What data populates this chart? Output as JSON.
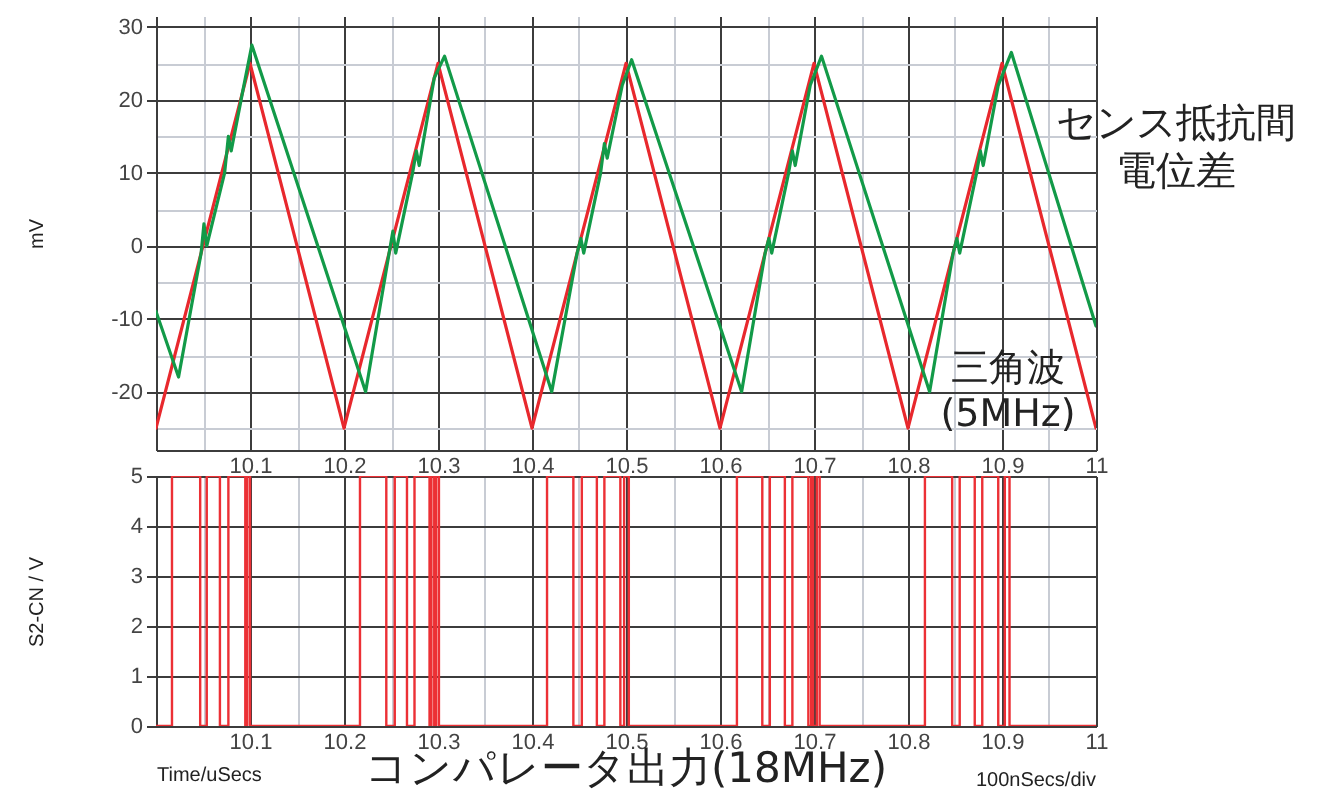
{
  "chart_data": [
    {
      "type": "line",
      "ylabel": "mV",
      "xlim": [
        10,
        11
      ],
      "xticks": [
        {
          "value": 10.05,
          "label": null
        },
        10.1,
        {
          "value": 10.15,
          "label": null
        },
        10.2,
        {
          "value": 10.25,
          "label": null
        },
        10.3,
        {
          "value": 10.35,
          "label": null
        },
        10.4,
        {
          "value": 10.45,
          "label": null
        },
        10.5,
        {
          "value": 10.55,
          "label": null
        },
        10.6,
        {
          "value": 10.65,
          "label": null
        },
        10.7,
        {
          "value": 10.75,
          "label": null
        },
        10.8,
        {
          "value": 10.85,
          "label": null
        },
        10.9,
        {
          "value": 10.95,
          "label": null
        },
        11
      ],
      "ylim": [
        -28,
        31.5
      ],
      "yticks": [
        {
          "value": -25,
          "label": null
        },
        -20,
        {
          "value": -15,
          "label": null
        },
        -10,
        {
          "value": -5,
          "label": null
        },
        0,
        {
          "value": 5,
          "label": null
        },
        10,
        {
          "value": 15,
          "label": null
        },
        20,
        {
          "value": 25,
          "label": null
        },
        30
      ],
      "grid": true,
      "series": [
        {
          "name": "三角波(5MHz)",
          "color": "#e8282d",
          "x": [
            10.0,
            10.1,
            10.2,
            10.3,
            10.4,
            10.5,
            10.6,
            10.7,
            10.8,
            10.9,
            11.0
          ],
          "values": [
            -25,
            25,
            -25,
            25,
            -25,
            25,
            -25,
            25,
            -25,
            25,
            -25
          ]
        },
        {
          "name": "センス抵抗間電位差",
          "color": "#129a48",
          "x": [
            10.0,
            10.024,
            10.048,
            10.051,
            10.054,
            10.073,
            10.077,
            10.08,
            10.092,
            10.102,
            10.223,
            10.248,
            10.252,
            10.255,
            10.273,
            10.277,
            10.28,
            10.296,
            10.307,
            10.421,
            10.448,
            10.452,
            10.455,
            10.473,
            10.477,
            10.48,
            10.496,
            10.506,
            10.623,
            10.648,
            10.652,
            10.655,
            10.673,
            10.677,
            10.68,
            10.696,
            10.708,
            10.823,
            10.848,
            10.852,
            10.855,
            10.873,
            10.877,
            10.88,
            10.896,
            10.91,
            11.0
          ],
          "values": [
            -9,
            -18,
            -1,
            3,
            0,
            10,
            15,
            13,
            21,
            27.5,
            -20,
            -1,
            2,
            -1,
            10,
            13,
            11,
            23,
            26,
            -20,
            -1,
            1,
            -1,
            10,
            14,
            12,
            22,
            25.5,
            -20,
            -1,
            1,
            -1,
            10,
            13,
            11,
            22,
            26,
            -20,
            -1,
            1,
            -1,
            10,
            13,
            11,
            22,
            26.5,
            -11
          ]
        }
      ]
    },
    {
      "type": "step",
      "xlabel": "Time/uSecs",
      "ylabel": "S2-CN / V",
      "xlim": [
        10,
        11
      ],
      "xticks": [
        {
          "value": 10.05,
          "label": null
        },
        10.1,
        {
          "value": 10.15,
          "label": null
        },
        10.2,
        {
          "value": 10.25,
          "label": null
        },
        10.3,
        {
          "value": 10.35,
          "label": null
        },
        10.4,
        {
          "value": 10.45,
          "label": null
        },
        10.5,
        {
          "value": 10.55,
          "label": null
        },
        10.6,
        {
          "value": 10.65,
          "label": null
        },
        10.7,
        {
          "value": 10.75,
          "label": null
        },
        10.8,
        {
          "value": 10.85,
          "label": null
        },
        10.9,
        {
          "value": 10.95,
          "label": null
        },
        11
      ],
      "ylim": [
        0,
        5
      ],
      "yticks": [
        0,
        1,
        2,
        3,
        4,
        5
      ],
      "grid": true,
      "series": [
        {
          "name": "コンパレータ出力(18MHz)",
          "color": "#ec3035",
          "x": [
            10.0,
            10.017,
            10.047,
            10.054,
            10.068,
            10.077,
            10.095,
            10.097,
            10.1,
            10.217,
            10.245,
            10.254,
            10.267,
            10.275,
            10.291,
            10.293,
            10.296,
            10.298,
            10.301,
            10.416,
            10.444,
            10.453,
            10.469,
            10.477,
            10.494,
            10.498,
            10.503,
            10.618,
            10.645,
            10.653,
            10.669,
            10.677,
            10.694,
            10.697,
            10.699,
            10.703,
            10.706,
            10.818,
            10.847,
            10.855,
            10.871,
            10.879,
            10.896,
            10.903,
            10.908,
            11.0
          ],
          "values": [
            0,
            5,
            0,
            5,
            0,
            5,
            0,
            5,
            0,
            5,
            0,
            5,
            0,
            5,
            0,
            5,
            0,
            5,
            0,
            5,
            0,
            5,
            0,
            5,
            0,
            5,
            0,
            5,
            0,
            5,
            0,
            5,
            0,
            5,
            0,
            5,
            0,
            5,
            0,
            5,
            0,
            5,
            0,
            5,
            0,
            0
          ]
        }
      ],
      "annotations": [
        "100nSecs/div"
      ]
    }
  ]
}
